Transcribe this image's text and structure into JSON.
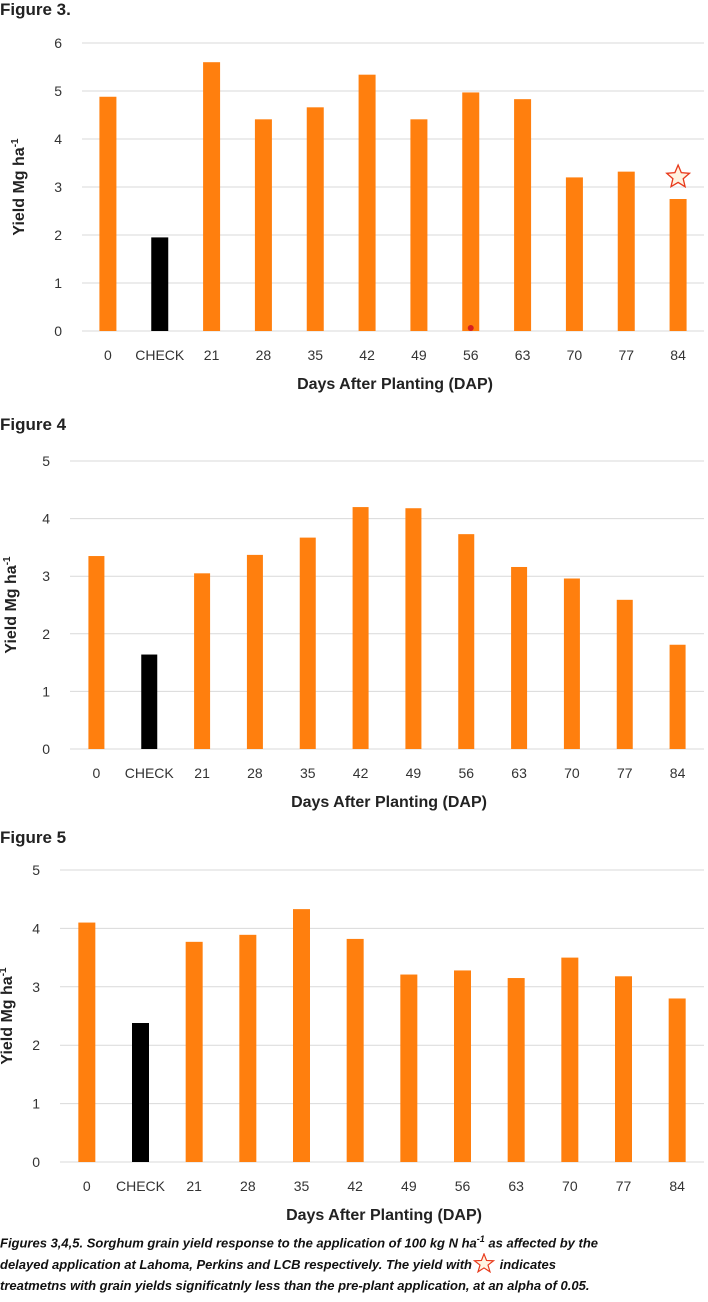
{
  "figures": [
    {
      "label": "Figure 3.",
      "chart_data": {
        "type": "bar",
        "categories": [
          "0",
          "CHECK",
          "21",
          "28",
          "35",
          "42",
          "49",
          "56",
          "63",
          "70",
          "77",
          "84"
        ],
        "values": [
          4.88,
          1.95,
          5.6,
          4.41,
          4.66,
          5.34,
          4.41,
          4.97,
          4.83,
          3.2,
          3.32,
          2.75
        ],
        "title": "",
        "xlabel": "Days After Planting (DAP)",
        "ylabel": "Yield Mg ha",
        "ylabel_superscript": "-1",
        "ylim": [
          0,
          6
        ],
        "yticks": [
          0,
          1,
          2,
          3,
          4,
          5,
          6
        ],
        "grid": true,
        "colors": {
          "bar": "#FF7F0E",
          "check_bar": "#000000"
        },
        "highlight_category": "CHECK",
        "marked_categories": [
          "84"
        ]
      }
    },
    {
      "label": "Figure 4",
      "chart_data": {
        "type": "bar",
        "categories": [
          "0",
          "CHECK",
          "21",
          "28",
          "35",
          "42",
          "49",
          "56",
          "63",
          "70",
          "77",
          "84"
        ],
        "values": [
          3.35,
          1.64,
          3.05,
          3.37,
          3.67,
          4.2,
          4.18,
          3.73,
          3.16,
          2.96,
          2.59,
          1.81
        ],
        "title": "",
        "xlabel": "Days After Planting (DAP)",
        "ylabel": "Yield Mg ha",
        "ylabel_superscript": "-1",
        "ylim": [
          0,
          5
        ],
        "yticks": [
          0,
          1,
          2,
          3,
          4,
          5
        ],
        "grid": true,
        "colors": {
          "bar": "#FF7F0E",
          "check_bar": "#000000"
        },
        "highlight_category": "CHECK",
        "marked_categories": []
      }
    },
    {
      "label": "Figure 5",
      "chart_data": {
        "type": "bar",
        "categories": [
          "0",
          "CHECK",
          "21",
          "28",
          "35",
          "42",
          "49",
          "56",
          "63",
          "70",
          "77",
          "84"
        ],
        "values": [
          4.1,
          2.38,
          3.77,
          3.89,
          4.33,
          3.82,
          3.21,
          3.28,
          3.15,
          3.5,
          3.18,
          2.8
        ],
        "title": "",
        "xlabel": "Days After Planting (DAP)",
        "ylabel": "Yield Mg ha",
        "ylabel_superscript": "-1",
        "ylim": [
          0,
          5
        ],
        "yticks": [
          0,
          1,
          2,
          3,
          4,
          5
        ],
        "grid": true,
        "colors": {
          "bar": "#FF7F0E",
          "check_bar": "#000000"
        },
        "highlight_category": "CHECK",
        "marked_categories": []
      }
    }
  ],
  "caption": {
    "line1_a": "Figures 3,4,5. Sorghum grain yield response to the application of 100 kg N ha",
    "line1_sup": "-1",
    "line1_b": " as affected by the",
    "line2_a": "delayed application at Lahoma, Perkins and LCB respectively. The yield with",
    "line2_b": " indicates",
    "line3": "treatmetns with grain yields significatnly less than the pre-plant application, at an alpha of 0.05."
  },
  "star_icon": "star-outline-icon"
}
